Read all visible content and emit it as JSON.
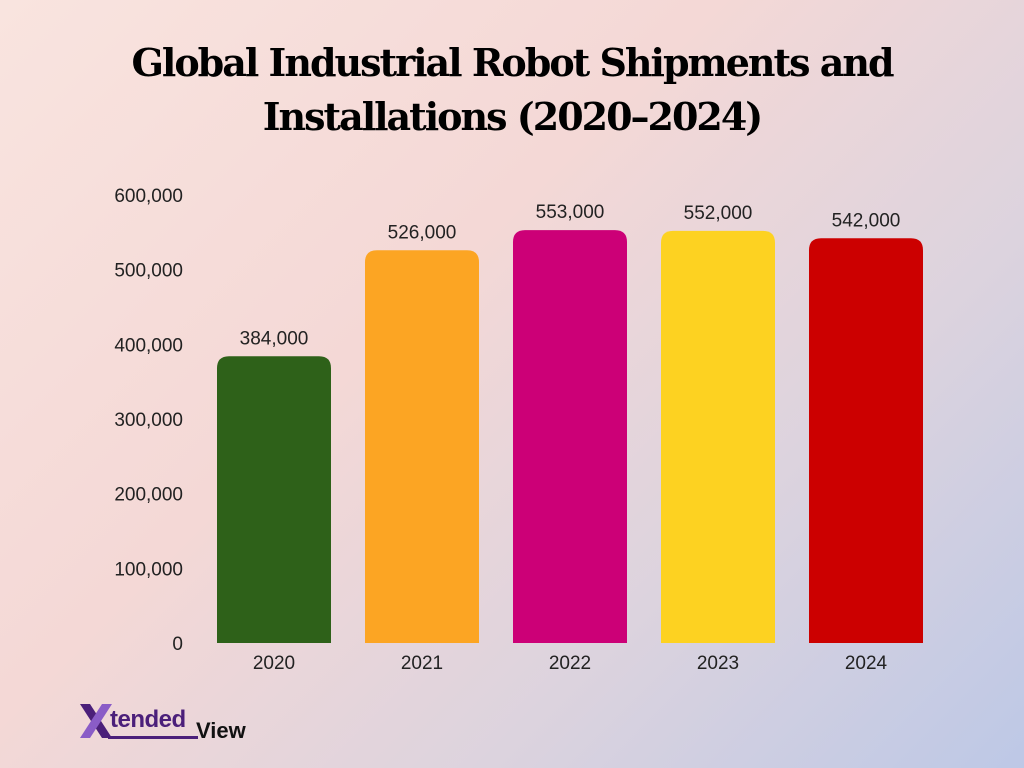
{
  "chart_data": {
    "type": "bar",
    "title": "Global Industrial Robot Shipments and Installations (2020–2024)",
    "categories": [
      "2020",
      "2021",
      "2022",
      "2023",
      "2024"
    ],
    "values": [
      384000,
      526000,
      553000,
      552000,
      542000
    ],
    "data_labels": [
      "384,000",
      "526,000",
      "553,000",
      "552,000",
      "542,000"
    ],
    "colors": [
      "#2e6119",
      "#fca523",
      "#cc0077",
      "#fdd221",
      "#cc0000"
    ],
    "y_ticks": [
      "0",
      "100,000",
      "200,000",
      "300,000",
      "400,000",
      "500,000",
      "600,000"
    ],
    "ylim": [
      0,
      600000
    ],
    "grid": false,
    "legend": false
  },
  "logo": {
    "text_part1": "tended",
    "text_part2": "View",
    "colors": {
      "primary": "#4b1f7a",
      "secondary": "#8a5cc7"
    }
  }
}
